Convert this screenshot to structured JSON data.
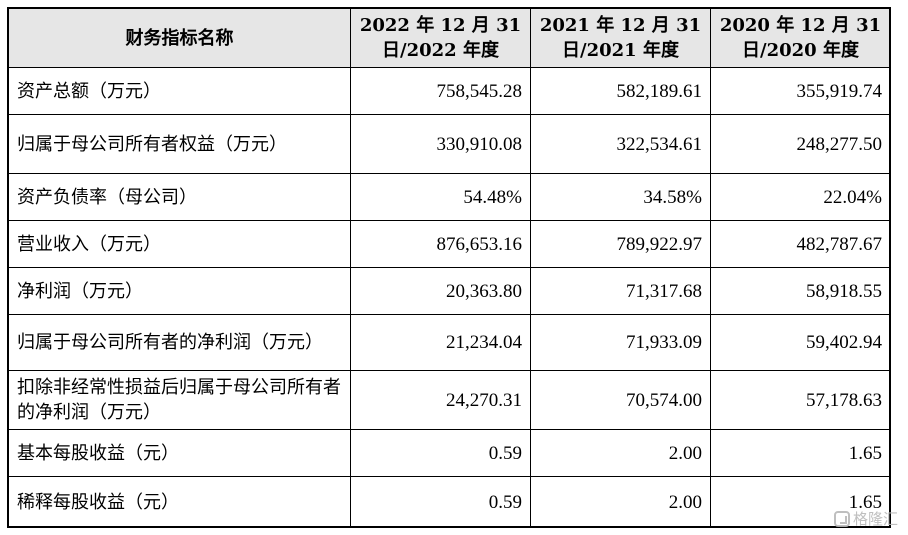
{
  "table": {
    "headers": [
      "财务指标名称",
      "2022 年 12 月 31 日/2022 年度",
      "2021 年 12 月 31 日/2021 年度",
      "2020 年 12 月 31 日/2020 年度"
    ],
    "rows": [
      {
        "label": "资产总额（万元）",
        "values": [
          "758,545.28",
          "582,189.61",
          "355,919.74"
        ]
      },
      {
        "label": "归属于母公司所有者权益（万元）",
        "values": [
          "330,910.08",
          "322,534.61",
          "248,277.50"
        ]
      },
      {
        "label": "资产负债率（母公司）",
        "values": [
          "54.48%",
          "34.58%",
          "22.04%"
        ]
      },
      {
        "label": "营业收入（万元）",
        "values": [
          "876,653.16",
          "789,922.97",
          "482,787.67"
        ]
      },
      {
        "label": "净利润（万元）",
        "values": [
          "20,363.80",
          "71,317.68",
          "58,918.55"
        ]
      },
      {
        "label": "归属于母公司所有者的净利润（万元）",
        "values": [
          "21,234.04",
          "71,933.09",
          "59,402.94"
        ]
      },
      {
        "label": "扣除非经常性损益后归属于母公司所有者的净利润（万元）",
        "values": [
          "24,270.31",
          "70,574.00",
          "57,178.63"
        ]
      },
      {
        "label": "基本每股收益（元）",
        "values": [
          "0.59",
          "2.00",
          "1.65"
        ]
      },
      {
        "label": "稀释每股收益（元）",
        "values": [
          "0.59",
          "2.00",
          "1.65"
        ]
      }
    ]
  },
  "watermark": {
    "text": "格隆汇",
    "icon": "brand-logo-icon"
  },
  "colors": {
    "header_bg": "#e6e6e6",
    "border": "#000000",
    "watermark": "#b9b9b9"
  }
}
